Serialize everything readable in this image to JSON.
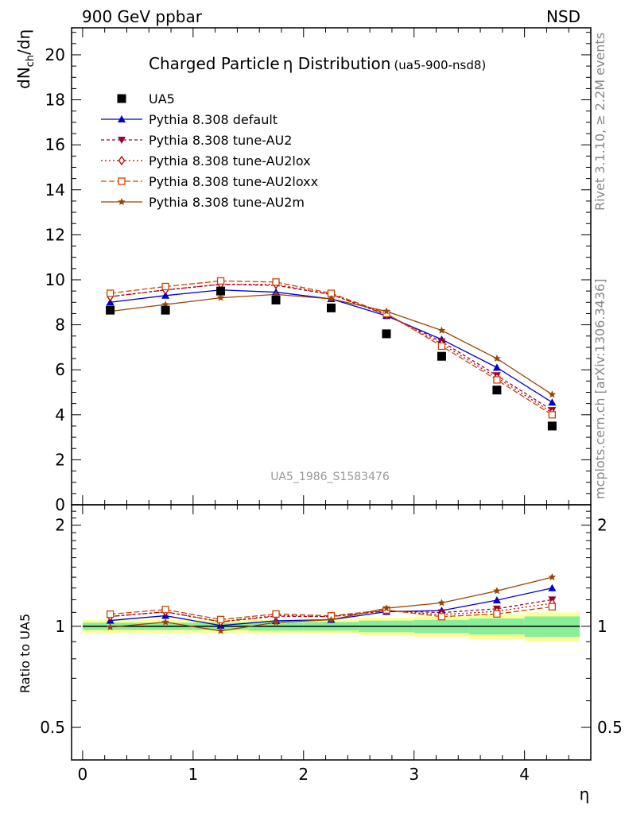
{
  "header": {
    "energy_label": "900 GeV ppbar",
    "process_label": "NSD"
  },
  "chart_data": {
    "type": "line",
    "title": "Charged Particle",
    "title_symbol": "η",
    "title_symbol_suffix": " Distribution",
    "title_tag": "(ua5-900-nsd8)",
    "xlabel": "η",
    "ylabel": "dN",
    "ylabel_sub": "ch",
    "ylabel_suffix": "/dη",
    "ratio_ylabel": "Ratio to UA5",
    "ref_label": "UA5_1986_S1583476",
    "side_label_rivet": "Rivet 3.1.10, ≥ 2.2M events",
    "side_label_url": "mcplots.cern.ch [arXiv:1306.3436]",
    "xlim": [
      -0.1,
      4.6
    ],
    "ylim": [
      0,
      21.2
    ],
    "ratio_ylim": [
      0.4,
      2.3
    ],
    "ratio_log": true,
    "x_ticks": [
      0,
      1,
      2,
      3,
      4
    ],
    "y_ticks": [
      0,
      2,
      4,
      6,
      8,
      10,
      12,
      14,
      16,
      18,
      20
    ],
    "ratio_ticks": [
      0.5,
      1,
      2
    ],
    "x": [
      0.25,
      0.75,
      1.25,
      1.75,
      2.25,
      2.75,
      3.25,
      3.75,
      4.25
    ],
    "data": {
      "name": "UA5",
      "color": "#000000",
      "values": [
        8.65,
        8.65,
        9.5,
        9.1,
        8.75,
        7.6,
        6.6,
        5.1,
        3.5
      ],
      "band_inner": [
        0.025,
        0.025,
        0.025,
        0.03,
        0.03,
        0.04,
        0.045,
        0.055,
        0.07
      ],
      "band_outer": [
        0.045,
        0.045,
        0.045,
        0.05,
        0.05,
        0.06,
        0.07,
        0.085,
        0.1
      ]
    },
    "series": [
      {
        "name": "Pythia 8.308 default",
        "color": "#0000cc",
        "marker": "triangle-up",
        "dash": "",
        "values": [
          9.0,
          9.3,
          9.55,
          9.45,
          9.15,
          8.4,
          7.35,
          6.1,
          4.55
        ]
      },
      {
        "name": "Pythia 8.308 tune-AU2",
        "color": "#990033",
        "marker": "triangle-down",
        "dash": "4,3",
        "values": [
          9.25,
          9.55,
          9.8,
          9.75,
          9.35,
          8.45,
          7.25,
          5.75,
          4.2
        ]
      },
      {
        "name": "Pythia 8.308 tune-AU2lox",
        "color": "#b30000",
        "marker": "diamond-open",
        "dash": "2,3",
        "values": [
          9.25,
          9.55,
          9.8,
          9.8,
          9.35,
          8.45,
          7.15,
          5.65,
          4.1
        ]
      },
      {
        "name": "Pythia 8.308 tune-AU2loxx",
        "color": "#cc4400",
        "marker": "square-open",
        "dash": "7,3",
        "values": [
          9.4,
          9.7,
          9.95,
          9.9,
          9.4,
          8.5,
          7.05,
          5.55,
          4.0
        ]
      },
      {
        "name": "Pythia 8.308 tune-AU2m",
        "color": "#994400",
        "marker": "star",
        "dash": "",
        "values": [
          8.6,
          8.9,
          9.2,
          9.35,
          9.15,
          8.6,
          7.75,
          6.5,
          4.9
        ]
      }
    ],
    "grid": false,
    "legend_position": "top-left"
  }
}
